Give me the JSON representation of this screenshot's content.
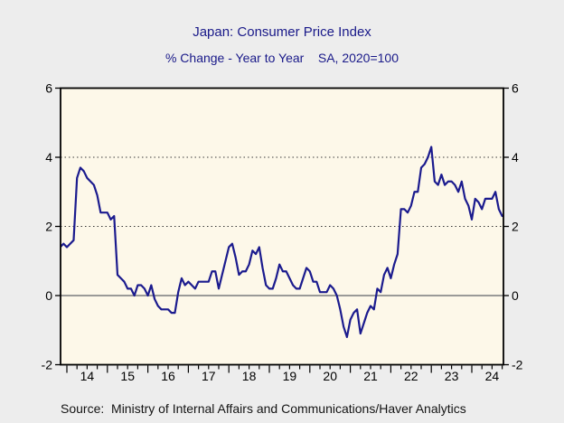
{
  "page": {
    "title": "Japan: Consumer Price Index",
    "subtitle": "% Change - Year to Year    SA, 2020=100",
    "source": "Source:  Ministry of Internal Affairs and Communications/Haver Analytics",
    "background": "#ededed",
    "title_color": "#191989"
  },
  "chart_data": {
    "type": "line",
    "title": "Japan: Consumer Price Index",
    "subtitle": "% Change - Year to Year    SA, 2020=100",
    "source": "Source:  Ministry of Internal Affairs and Communications/Haver Analytics",
    "ylim": [
      -2,
      6
    ],
    "yticks": [
      6,
      4,
      2,
      0,
      -2
    ],
    "ytick_labels": [
      "6",
      "4",
      "2",
      "0",
      "-2"
    ],
    "grid_values": [
      4,
      2
    ],
    "zero_line_value": 0,
    "grid_style": "dotted",
    "x_year_labels": [
      "14",
      "15",
      "16",
      "17",
      "18",
      "19",
      "20",
      "21",
      "22",
      "23",
      "24"
    ],
    "x_minor_tick": "quarterly",
    "x_range_start": "2013-11",
    "x_range_end": "2024-10",
    "plot_bg": "#fdf8e9",
    "frame_color": "#000000",
    "line_color": "#1b1b8e",
    "zero_line_color": "#8c8c8c",
    "legend": "none",
    "series": [
      {
        "name": "Japan CPI, % change year to year (SA, 2020=100)",
        "frequency": "monthly",
        "start_year": 2013,
        "start_month": 11,
        "values": [
          1.4,
          1.5,
          1.4,
          1.5,
          1.6,
          3.4,
          3.7,
          3.6,
          3.4,
          3.3,
          3.2,
          2.9,
          2.4,
          2.4,
          2.4,
          2.2,
          2.3,
          0.6,
          0.5,
          0.4,
          0.2,
          0.2,
          0.0,
          0.3,
          0.3,
          0.2,
          0.0,
          0.3,
          -0.1,
          -0.3,
          -0.4,
          -0.4,
          -0.4,
          -0.5,
          -0.5,
          0.1,
          0.5,
          0.3,
          0.4,
          0.3,
          0.2,
          0.4,
          0.4,
          0.4,
          0.4,
          0.7,
          0.7,
          0.2,
          0.6,
          1.0,
          1.4,
          1.5,
          1.1,
          0.6,
          0.7,
          0.7,
          0.9,
          1.3,
          1.2,
          1.4,
          0.8,
          0.3,
          0.2,
          0.2,
          0.5,
          0.9,
          0.7,
          0.7,
          0.5,
          0.3,
          0.2,
          0.2,
          0.5,
          0.8,
          0.7,
          0.4,
          0.4,
          0.1,
          0.1,
          0.1,
          0.3,
          0.2,
          0.0,
          -0.4,
          -0.9,
          -1.2,
          -0.7,
          -0.5,
          -0.4,
          -1.1,
          -0.8,
          -0.5,
          -0.3,
          -0.4,
          0.2,
          0.1,
          0.6,
          0.8,
          0.5,
          0.9,
          1.2,
          2.5,
          2.5,
          2.4,
          2.6,
          3.0,
          3.0,
          3.7,
          3.8,
          4.0,
          4.3,
          3.3,
          3.2,
          3.5,
          3.2,
          3.3,
          3.3,
          3.2,
          3.0,
          3.3,
          2.8,
          2.6,
          2.2,
          2.8,
          2.7,
          2.5,
          2.8,
          2.8,
          2.8,
          3.0,
          2.5,
          2.3
        ]
      }
    ]
  }
}
